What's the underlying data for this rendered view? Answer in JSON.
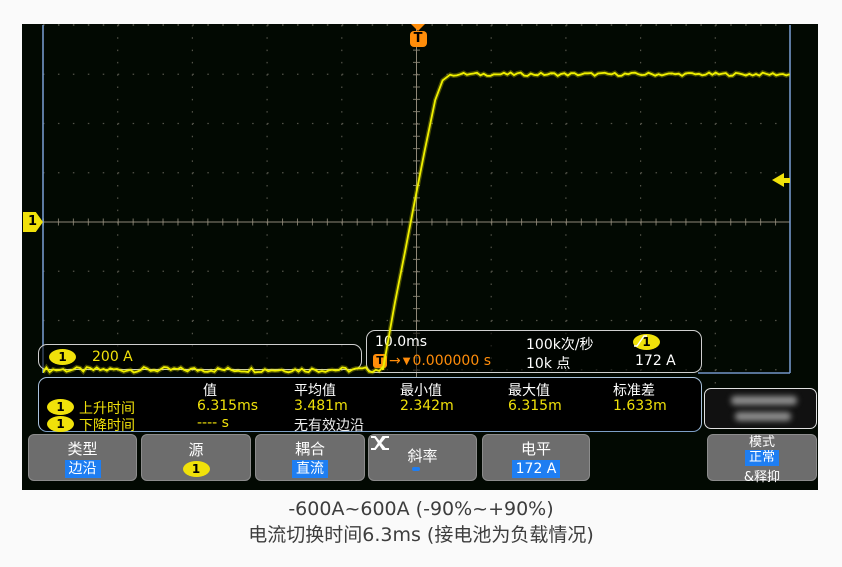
{
  "screen": {
    "channel_marker": "1",
    "trigger_marker": "T",
    "channel_info": {
      "channel": "1",
      "scale": "200 A"
    },
    "timebase_info": {
      "timebase": "10.0ms",
      "trigger_symbol": "T",
      "delay": "0.000000 s",
      "acq_rate": "100k次/秒",
      "points": "10k 点",
      "trig_source": "1",
      "trig_level": "172 A"
    },
    "measurements": {
      "headers": [
        "值",
        "平均值",
        "最小值",
        "最大值",
        "标准差"
      ],
      "rows": [
        {
          "channel": "1",
          "label": "上升时间",
          "values": [
            "6.315ms",
            "3.481m",
            "2.342m",
            "6.315m",
            "1.633m"
          ],
          "value_colors": [
            "yel",
            "yel",
            "yel",
            "yel",
            "yel"
          ]
        },
        {
          "channel": "1",
          "label": "下降时间",
          "values": [
            "---- s",
            "无有效边沿",
            "",
            "",
            ""
          ],
          "value_colors": [
            "yel",
            "wht",
            "",
            "",
            ""
          ]
        }
      ]
    },
    "menu": {
      "type_label": "类型",
      "type_value": "边沿",
      "source_label": "源",
      "source_value": "1",
      "coupling_label": "耦合",
      "coupling_value": "直流",
      "slope_label": "斜率",
      "slope_icons": [
        "rising-edge",
        "falling-edge",
        "either-edge"
      ],
      "slope_selected": "rising-edge",
      "level_label": "电平",
      "level_value": "172 A",
      "mode_label": "模式",
      "mode_value": "正常",
      "mode_value2": "&释抑"
    }
  },
  "icons": {
    "trigger-marker": "T on orange badge + down triangle",
    "channel-marker": "yellow pentagon with 1",
    "trigger-level-arrow": "yellow left arrow",
    "rising-edge": "low-up-high step line",
    "falling-edge": "high-down-low step line",
    "either-edge": "crossed rise/fall lines",
    "trig-slope-rising": "small rising slash"
  },
  "colors": {
    "trace": "#f0f000",
    "channel_yellow": "#f0e10a",
    "trigger_orange": "#ff8d0a",
    "accent_blue": "#1e7ef2",
    "menu_gray": "#6d6d6d",
    "grid_dot": "#54544a",
    "grid_axis": "#8f8878",
    "grid_border_blue": "#7396c8"
  },
  "caption": {
    "line1": "-600A~600A (-90%~+90%)",
    "line2": "电流切换时间6.3ms (接电池为负载情况)"
  },
  "chart_data": {
    "type": "line",
    "title": "Oscilloscope channel 1 current step waveform",
    "x_units": "time (10.0 ms/div, 10 divisions)",
    "y_units": "current (200 A/div, 8 divisions)",
    "time_per_div_ms": 10.0,
    "amps_per_div": 200,
    "divisions_x": 10,
    "divisions_y": 8,
    "trigger_delay_s": 0.0,
    "trigger_level_A": 172,
    "grid": "dotted divisions with solid center axes",
    "series": [
      {
        "name": "CH1 current",
        "low_level_A": -600,
        "high_level_A": 600,
        "x_range_ms": [
          -50,
          50
        ],
        "ramp_points_ms_A": [
          [
            -4.5,
            -600
          ],
          [
            -2.9,
            -330
          ],
          [
            -1.5,
            -115
          ],
          [
            -0.2,
            90
          ],
          [
            1.1,
            290
          ],
          [
            2.5,
            495
          ],
          [
            3.5,
            575
          ],
          [
            4.5,
            598
          ]
        ],
        "noise_peak_A_low": 22,
        "noise_peak_A_high": 14
      }
    ],
    "measured": {
      "rise_time": "6.315ms",
      "average": "3.481m",
      "min": "2.342m",
      "max": "6.315m",
      "stdev": "1.633m",
      "fall_time": "---- s (无有效边沿)"
    }
  }
}
